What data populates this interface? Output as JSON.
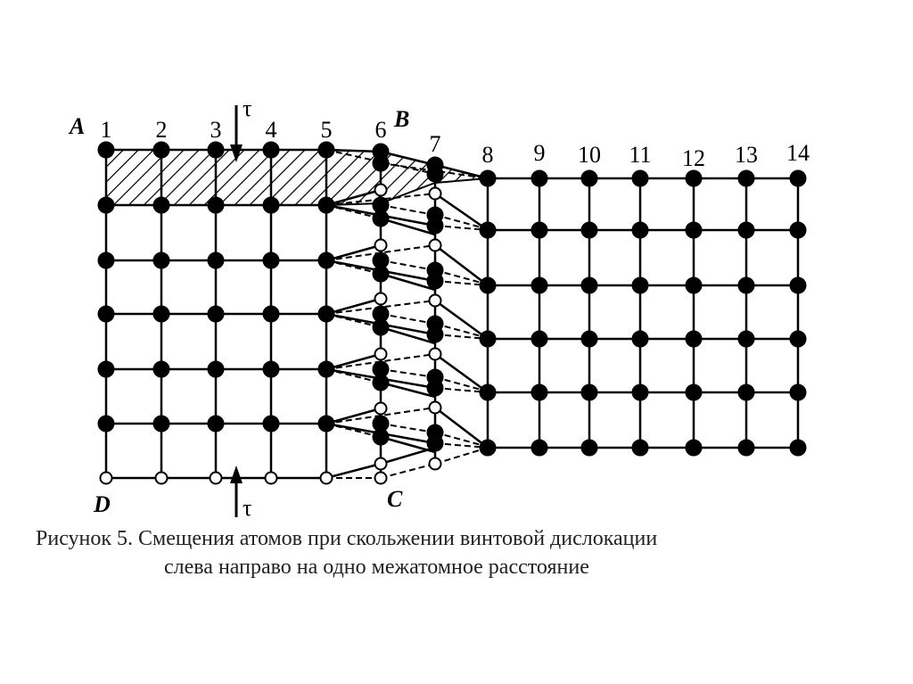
{
  "figure": {
    "corner_labels": {
      "A": "A",
      "B": "B",
      "C": "C",
      "D": "D"
    },
    "stress_symbol": "τ",
    "column_numbers": [
      "1",
      "2",
      "3",
      "4",
      "5",
      "6",
      "7",
      "8",
      "9",
      "10",
      "11",
      "12",
      "13",
      "14"
    ]
  },
  "caption": {
    "prefix": "Рисунок 5.",
    "line1": "Смещения атомов при скольжении винтовой дислокации",
    "line2": "слева направо на одно межатомное расстояние"
  },
  "colors": {
    "ink": "#000000",
    "open_atom": "#ffffff"
  }
}
